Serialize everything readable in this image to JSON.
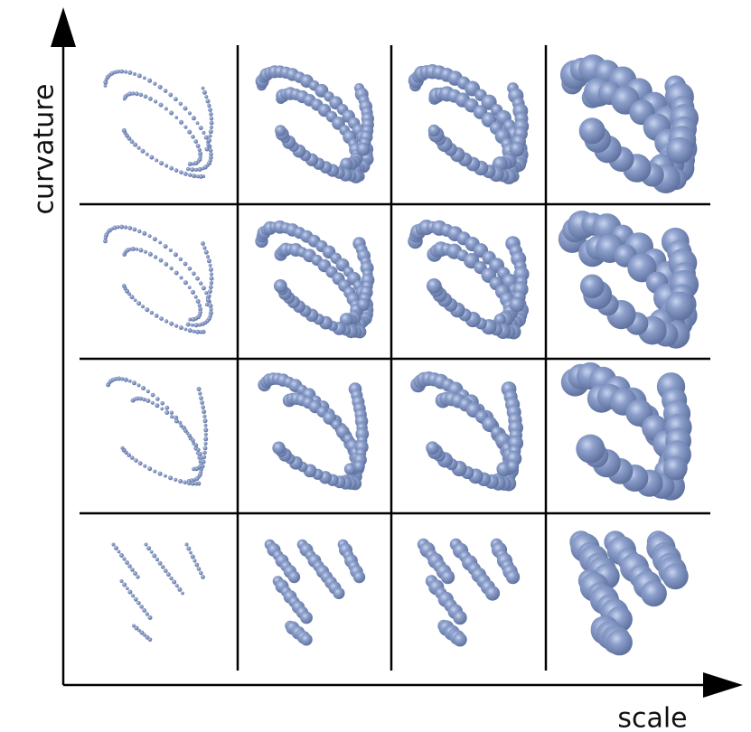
{
  "axes": {
    "y_label": "curvature",
    "x_label": "scale"
  }
}
